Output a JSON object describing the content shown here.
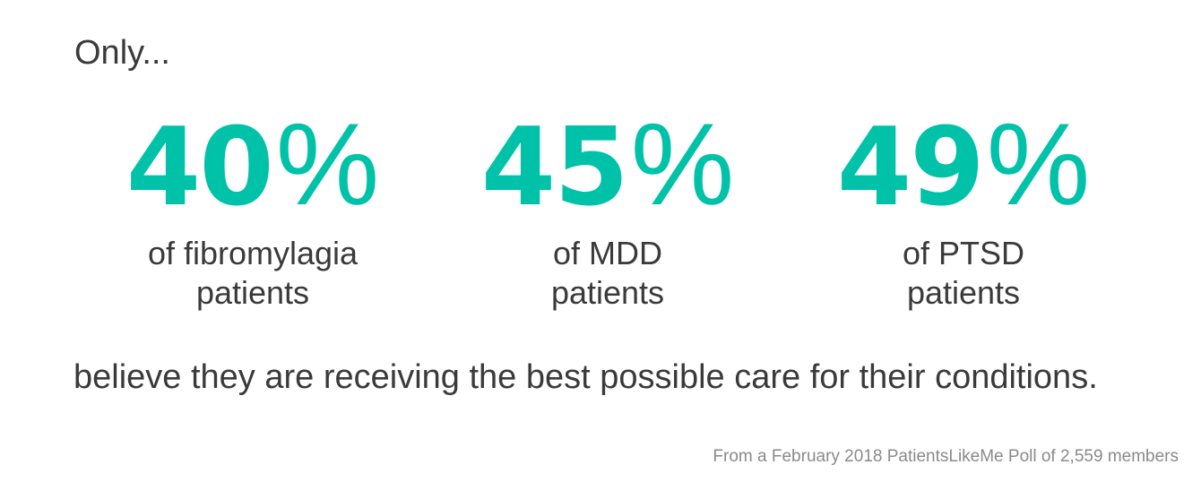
{
  "intro": "Only...",
  "stats": [
    {
      "number": "40",
      "percent_sign": "%",
      "value": 40,
      "caption_line1": "of fibromylagia",
      "caption_line2": "patients"
    },
    {
      "number": "45",
      "percent_sign": "%",
      "value": 45,
      "caption_line1": "of MDD",
      "caption_line2": "patients"
    },
    {
      "number": "49",
      "percent_sign": "%",
      "value": 49,
      "caption_line1": "of PTSD",
      "caption_line2": "patients"
    }
  ],
  "conclusion": "believe they are receiving the best possible care for their conditions.",
  "source": "From a February 2018 PatientsLikeMe Poll of 2,559 members",
  "colors": {
    "accent": "#00c2a8",
    "text": "#3a3a3a",
    "muted": "#8a8a8a",
    "background": "#ffffff"
  }
}
